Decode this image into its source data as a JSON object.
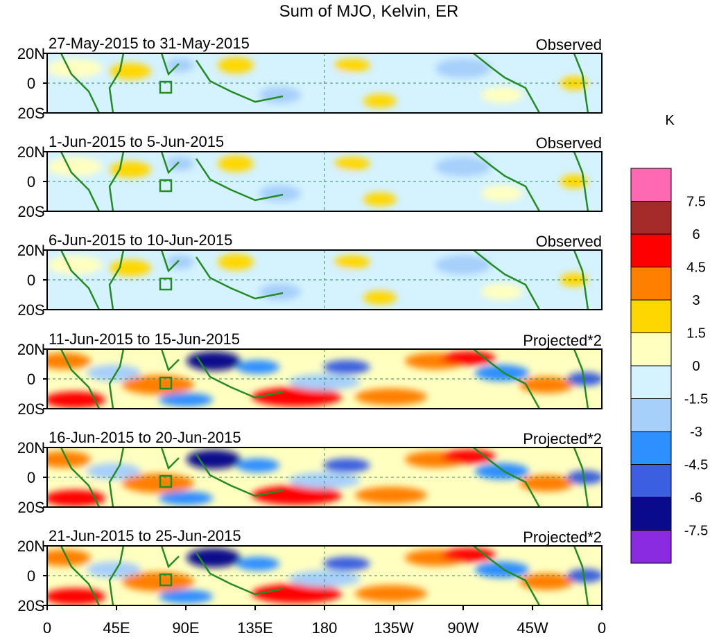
{
  "title": "Sum of MJO, Kelvin, ER",
  "units_label": "K",
  "lat_labels": [
    "20N",
    "0",
    "20S"
  ],
  "lon_labels": [
    "0",
    "45E",
    "90E",
    "135E",
    "180",
    "135W",
    "90W",
    "45W",
    "0"
  ],
  "panels": [
    {
      "date_range": "27-May-2015 to 31-May-2015",
      "type_label": "Observed"
    },
    {
      "date_range": "1-Jun-2015 to 5-Jun-2015",
      "type_label": "Observed"
    },
    {
      "date_range": "6-Jun-2015 to 10-Jun-2015",
      "type_label": "Observed"
    },
    {
      "date_range": "11-Jun-2015 to 15-Jun-2015",
      "type_label": "Projected*2"
    },
    {
      "date_range": "16-Jun-2015 to 20-Jun-2015",
      "type_label": "Projected*2"
    },
    {
      "date_range": "21-Jun-2015 to 25-Jun-2015",
      "type_label": "Projected*2"
    }
  ],
  "colorbar": {
    "levels": [
      "7.5",
      "6",
      "4.5",
      "3",
      "1.5",
      "0",
      "-1.5",
      "-3",
      "-4.5",
      "-6",
      "-7.5"
    ],
    "colors": [
      "#ff69b4",
      "#a52a2a",
      "#ff0000",
      "#ff7f00",
      "#ffd700",
      "#ffffc0",
      "#d4f2ff",
      "#a6cffa",
      "#2e8fff",
      "#3b5fe0",
      "#0a0a8c",
      "#8a2be2"
    ]
  },
  "colors": {
    "coastline": "#228b22",
    "zero_line": "#2e8b57"
  }
}
